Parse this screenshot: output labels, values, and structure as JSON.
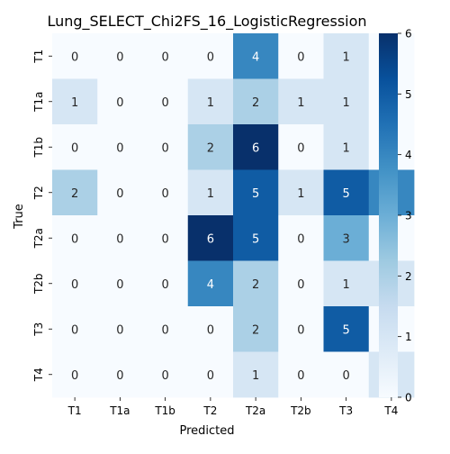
{
  "chart_data": {
    "type": "heatmap",
    "title": "Lung_SELECT_Chi2FS_16_LogisticRegression",
    "xlabel": "Predicted",
    "ylabel": "True",
    "x_categories": [
      "T1",
      "T1a",
      "T1b",
      "T2",
      "T2a",
      "T2b",
      "T3",
      "T4"
    ],
    "y_categories": [
      "T1",
      "T1a",
      "T1b",
      "T2",
      "T2a",
      "T2b",
      "T3",
      "T4"
    ],
    "values": [
      [
        0,
        0,
        0,
        0,
        4,
        0,
        1,
        0
      ],
      [
        1,
        0,
        0,
        1,
        2,
        1,
        1,
        0
      ],
      [
        0,
        0,
        0,
        2,
        6,
        0,
        1,
        0
      ],
      [
        2,
        0,
        0,
        1,
        5,
        1,
        5,
        4
      ],
      [
        0,
        0,
        0,
        6,
        5,
        0,
        3,
        0
      ],
      [
        0,
        0,
        0,
        4,
        2,
        0,
        1,
        1
      ],
      [
        0,
        0,
        0,
        0,
        2,
        0,
        5,
        0
      ],
      [
        0,
        0,
        0,
        0,
        1,
        0,
        0,
        1
      ]
    ],
    "colorbar": {
      "min": 0,
      "max": 6,
      "ticks": [
        0,
        1,
        2,
        3,
        4,
        5,
        6
      ],
      "colormap": "Blues"
    }
  }
}
